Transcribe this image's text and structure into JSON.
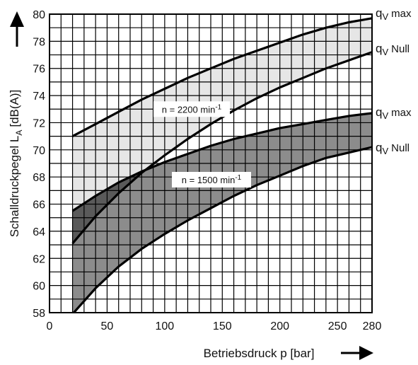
{
  "chart_data": {
    "type": "area",
    "xlabel": "Betriebsdruck p [bar]",
    "ylabel_main": "Schalldruckpegel L",
    "ylabel_sub": "A",
    "ylabel_unit": "[dB(A)]",
    "xlim": [
      0,
      280
    ],
    "ylim": [
      58,
      80
    ],
    "x_ticks": [
      "0",
      "50",
      "100",
      "150",
      "200",
      "250",
      "280"
    ],
    "y_ticks": [
      "58",
      "60",
      "62",
      "64",
      "66",
      "68",
      "70",
      "72",
      "74",
      "76",
      "78",
      "80"
    ],
    "grid": true,
    "series": [
      {
        "name": "n = 2200 min-1",
        "label_text": "n = 2200 min",
        "label_sup": "-1",
        "fill": "#e6e6e6",
        "upper": {
          "end_label": "qV max",
          "x": [
            20,
            40,
            60,
            80,
            100,
            120,
            140,
            160,
            180,
            200,
            220,
            240,
            260,
            280
          ],
          "y": [
            71.0,
            71.9,
            72.8,
            73.7,
            74.5,
            75.3,
            76.0,
            76.7,
            77.3,
            77.9,
            78.5,
            79.0,
            79.4,
            79.7
          ]
        },
        "lower": {
          "end_label": "qV Null",
          "x": [
            20,
            40,
            60,
            80,
            100,
            120,
            140,
            160,
            180,
            200,
            220,
            240,
            260,
            280
          ],
          "y": [
            63.1,
            65.1,
            66.8,
            68.3,
            69.6,
            70.8,
            71.9,
            72.9,
            73.8,
            74.6,
            75.3,
            76.0,
            76.6,
            77.2
          ]
        }
      },
      {
        "name": "n = 1500 min-1",
        "label_text": "n = 1500 min",
        "label_sup": "-1",
        "fill": "#8c8c8c",
        "upper": {
          "end_label": "qV max",
          "x": [
            20,
            40,
            60,
            80,
            100,
            120,
            140,
            160,
            180,
            200,
            220,
            240,
            260,
            280
          ],
          "y": [
            65.5,
            66.6,
            67.6,
            68.4,
            69.1,
            69.7,
            70.3,
            70.8,
            71.2,
            71.6,
            71.9,
            72.2,
            72.5,
            72.7
          ]
        },
        "lower": {
          "end_label": "qV Null",
          "x": [
            20,
            40,
            60,
            80,
            100,
            120,
            140,
            160,
            180,
            200,
            220,
            240,
            260,
            280
          ],
          "y": [
            57.9,
            59.8,
            61.4,
            62.7,
            63.8,
            64.8,
            65.7,
            66.6,
            67.4,
            68.1,
            68.8,
            69.4,
            69.8,
            70.2
          ]
        }
      }
    ]
  }
}
